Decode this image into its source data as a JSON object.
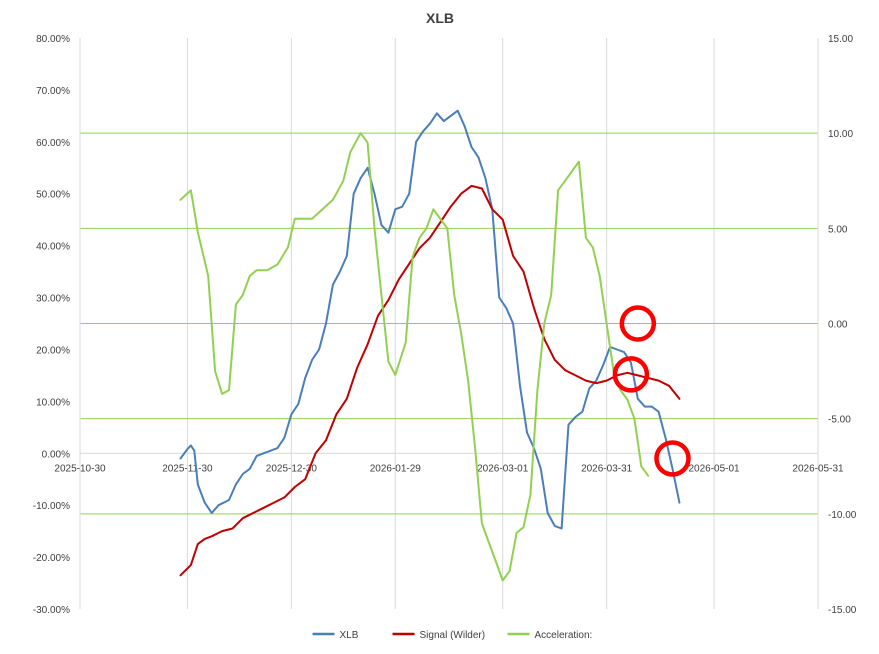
{
  "chart_data": {
    "type": "line",
    "title": "XLB",
    "x_ticks": [
      "2025-10-30",
      "2025-11-30",
      "2025-12-30",
      "2026-01-29",
      "2026-03-01",
      "2026-03-31",
      "2026-05-01",
      "2026-05-31"
    ],
    "x_range": [
      "2025-10-30",
      "2026-05-31"
    ],
    "y_left": {
      "range": [
        -30,
        80
      ],
      "ticks": [
        "-30.00%",
        "-20.00%",
        "-10.00%",
        "0.00%",
        "10.00%",
        "20.00%",
        "30.00%",
        "40.00%",
        "50.00%",
        "60.00%",
        "70.00%",
        "80.00%"
      ]
    },
    "y_right": {
      "range": [
        -15,
        15
      ],
      "ticks": [
        "-15.00",
        "-10.00",
        "-5.00",
        "0.00",
        "5.00",
        "10.00",
        "15.00"
      ]
    },
    "grid": {
      "vertical": true,
      "horizontal_right_axis": true
    },
    "legend_position": "bottom",
    "colors": {
      "xlb": "#4a7ebb",
      "signal": "#c00000",
      "acceleration": "#92d050",
      "grid_vertical": "#d9d9d9",
      "grid_horizontal": "#92d050",
      "annotation": "#ff0000"
    },
    "series": [
      {
        "name": "XLB",
        "axis": "left",
        "color": "#4a7ebb",
        "points": [
          [
            "2025-11-28",
            -1.0
          ],
          [
            "2025-11-30",
            0.8
          ],
          [
            "2025-12-01",
            1.5
          ],
          [
            "2025-12-02",
            0.5
          ],
          [
            "2025-12-03",
            -6.0
          ],
          [
            "2025-12-05",
            -9.5
          ],
          [
            "2025-12-07",
            -11.5
          ],
          [
            "2025-12-09",
            -10.0
          ],
          [
            "2025-12-12",
            -9.0
          ],
          [
            "2025-12-14",
            -6.0
          ],
          [
            "2025-12-16",
            -4.0
          ],
          [
            "2025-12-18",
            -3.0
          ],
          [
            "2025-12-20",
            -0.5
          ],
          [
            "2025-12-22",
            0.0
          ],
          [
            "2025-12-24",
            0.5
          ],
          [
            "2025-12-26",
            1.0
          ],
          [
            "2025-12-28",
            3.0
          ],
          [
            "2025-12-30",
            7.5
          ],
          [
            "2026-01-01",
            9.5
          ],
          [
            "2026-01-03",
            14.5
          ],
          [
            "2026-01-05",
            18.0
          ],
          [
            "2026-01-07",
            20.0
          ],
          [
            "2026-01-09",
            25.0
          ],
          [
            "2026-01-11",
            32.5
          ],
          [
            "2026-01-13",
            35.0
          ],
          [
            "2026-01-15",
            38.0
          ],
          [
            "2026-01-17",
            50.0
          ],
          [
            "2026-01-19",
            53.0
          ],
          [
            "2026-01-21",
            55.0
          ],
          [
            "2026-01-23",
            50.0
          ],
          [
            "2026-01-25",
            44.0
          ],
          [
            "2026-01-27",
            42.5
          ],
          [
            "2026-01-29",
            47.0
          ],
          [
            "2026-01-31",
            47.5
          ],
          [
            "2026-02-02",
            50.0
          ],
          [
            "2026-02-04",
            60.0
          ],
          [
            "2026-02-06",
            62.0
          ],
          [
            "2026-02-08",
            63.5
          ],
          [
            "2026-02-10",
            65.5
          ],
          [
            "2026-02-12",
            64.0
          ],
          [
            "2026-02-14",
            65.0
          ],
          [
            "2026-02-16",
            66.0
          ],
          [
            "2026-02-18",
            63.0
          ],
          [
            "2026-02-20",
            59.0
          ],
          [
            "2026-02-22",
            57.0
          ],
          [
            "2026-02-24",
            53.0
          ],
          [
            "2026-02-26",
            47.0
          ],
          [
            "2026-02-28",
            30.0
          ],
          [
            "2026-03-02",
            28.0
          ],
          [
            "2026-03-04",
            25.0
          ],
          [
            "2026-03-06",
            13.0
          ],
          [
            "2026-03-08",
            4.0
          ],
          [
            "2026-03-10",
            1.0
          ],
          [
            "2026-03-12",
            -3.0
          ],
          [
            "2026-03-14",
            -11.5
          ],
          [
            "2026-03-16",
            -14.0
          ],
          [
            "2026-03-18",
            -14.5
          ],
          [
            "2026-03-20",
            5.5
          ],
          [
            "2026-03-22",
            7.0
          ],
          [
            "2026-03-24",
            8.0
          ],
          [
            "2026-03-26",
            12.5
          ],
          [
            "2026-03-28",
            14.0
          ],
          [
            "2026-03-30",
            17.0
          ],
          [
            "2026-04-01",
            20.5
          ],
          [
            "2026-04-03",
            20.0
          ],
          [
            "2026-04-05",
            19.5
          ],
          [
            "2026-04-07",
            17.5
          ],
          [
            "2026-04-09",
            10.5
          ],
          [
            "2026-04-11",
            9.0
          ],
          [
            "2026-04-13",
            9.0
          ],
          [
            "2026-04-15",
            8.0
          ],
          [
            "2026-04-17",
            3.0
          ],
          [
            "2026-04-19",
            -3.0
          ],
          [
            "2026-04-21",
            -9.5
          ]
        ]
      },
      {
        "name": "Signal (Wilder)",
        "axis": "left",
        "color": "#c00000",
        "points": [
          [
            "2025-11-28",
            -23.5
          ],
          [
            "2025-12-01",
            -21.5
          ],
          [
            "2025-12-03",
            -17.5
          ],
          [
            "2025-12-05",
            -16.5
          ],
          [
            "2025-12-07",
            -16.0
          ],
          [
            "2025-12-10",
            -15.0
          ],
          [
            "2025-12-13",
            -14.5
          ],
          [
            "2025-12-16",
            -12.5
          ],
          [
            "2025-12-19",
            -11.5
          ],
          [
            "2025-12-22",
            -10.5
          ],
          [
            "2025-12-25",
            -9.5
          ],
          [
            "2025-12-28",
            -8.5
          ],
          [
            "2025-12-31",
            -6.5
          ],
          [
            "2026-01-03",
            -5.0
          ],
          [
            "2026-01-06",
            0.0
          ],
          [
            "2026-01-09",
            2.5
          ],
          [
            "2026-01-12",
            7.5
          ],
          [
            "2026-01-15",
            10.5
          ],
          [
            "2026-01-18",
            16.5
          ],
          [
            "2026-01-21",
            21.0
          ],
          [
            "2026-01-24",
            26.5
          ],
          [
            "2026-01-27",
            29.5
          ],
          [
            "2026-01-30",
            33.5
          ],
          [
            "2026-02-02",
            36.5
          ],
          [
            "2026-02-05",
            39.5
          ],
          [
            "2026-02-08",
            41.5
          ],
          [
            "2026-02-11",
            44.5
          ],
          [
            "2026-02-14",
            47.5
          ],
          [
            "2026-02-17",
            50.0
          ],
          [
            "2026-02-20",
            51.5
          ],
          [
            "2026-02-23",
            51.0
          ],
          [
            "2026-02-26",
            47.0
          ],
          [
            "2026-03-01",
            45.0
          ],
          [
            "2026-03-04",
            38.0
          ],
          [
            "2026-03-07",
            35.0
          ],
          [
            "2026-03-10",
            28.0
          ],
          [
            "2026-03-13",
            22.0
          ],
          [
            "2026-03-16",
            18.0
          ],
          [
            "2026-03-19",
            16.0
          ],
          [
            "2026-03-22",
            15.0
          ],
          [
            "2026-03-25",
            14.0
          ],
          [
            "2026-03-28",
            13.5
          ],
          [
            "2026-03-31",
            14.0
          ],
          [
            "2026-04-03",
            15.0
          ],
          [
            "2026-04-06",
            15.5
          ],
          [
            "2026-04-09",
            15.0
          ],
          [
            "2026-04-12",
            14.5
          ],
          [
            "2026-04-15",
            14.0
          ],
          [
            "2026-04-18",
            13.0
          ],
          [
            "2026-04-21",
            10.5
          ]
        ]
      },
      {
        "name": "Acceleration:",
        "axis": "right",
        "color": "#92d050",
        "points": [
          [
            "2025-11-28",
            6.5
          ],
          [
            "2025-12-01",
            7.0
          ],
          [
            "2025-12-03",
            4.8
          ],
          [
            "2025-12-06",
            2.5
          ],
          [
            "2025-12-08",
            -2.5
          ],
          [
            "2025-12-10",
            -3.7
          ],
          [
            "2025-12-12",
            -3.5
          ],
          [
            "2025-12-14",
            1.0
          ],
          [
            "2025-12-16",
            1.5
          ],
          [
            "2025-12-18",
            2.5
          ],
          [
            "2025-12-20",
            2.8
          ],
          [
            "2025-12-23",
            2.8
          ],
          [
            "2025-12-26",
            3.1
          ],
          [
            "2025-12-29",
            4.0
          ],
          [
            "2025-12-31",
            5.5
          ],
          [
            "2026-01-02",
            5.5
          ],
          [
            "2026-01-05",
            5.5
          ],
          [
            "2026-01-08",
            6.0
          ],
          [
            "2026-01-11",
            6.5
          ],
          [
            "2026-01-14",
            7.5
          ],
          [
            "2026-01-16",
            9.0
          ],
          [
            "2026-01-19",
            10.0
          ],
          [
            "2026-01-21",
            9.5
          ],
          [
            "2026-01-23",
            5.0
          ],
          [
            "2026-01-25",
            1.5
          ],
          [
            "2026-01-27",
            -2.0
          ],
          [
            "2026-01-29",
            -2.7
          ],
          [
            "2026-02-01",
            -1.0
          ],
          [
            "2026-02-03",
            3.5
          ],
          [
            "2026-02-05",
            4.5
          ],
          [
            "2026-02-07",
            5.0
          ],
          [
            "2026-02-09",
            6.0
          ],
          [
            "2026-02-11",
            5.5
          ],
          [
            "2026-02-13",
            5.0
          ],
          [
            "2026-02-15",
            1.5
          ],
          [
            "2026-02-17",
            -0.5
          ],
          [
            "2026-02-19",
            -3.0
          ],
          [
            "2026-02-21",
            -6.5
          ],
          [
            "2026-02-23",
            -10.5
          ],
          [
            "2026-02-25",
            -11.5
          ],
          [
            "2026-02-27",
            -12.5
          ],
          [
            "2026-03-01",
            -13.5
          ],
          [
            "2026-03-03",
            -13.0
          ],
          [
            "2026-03-05",
            -11.0
          ],
          [
            "2026-03-07",
            -10.7
          ],
          [
            "2026-03-09",
            -9.0
          ],
          [
            "2026-03-11",
            -3.5
          ],
          [
            "2026-03-13",
            0.0
          ],
          [
            "2026-03-15",
            1.5
          ],
          [
            "2026-03-17",
            7.0
          ],
          [
            "2026-03-19",
            7.5
          ],
          [
            "2026-03-21",
            8.0
          ],
          [
            "2026-03-23",
            8.5
          ],
          [
            "2026-03-25",
            4.5
          ],
          [
            "2026-03-27",
            4.0
          ],
          [
            "2026-03-29",
            2.5
          ],
          [
            "2026-03-31",
            0.0
          ],
          [
            "2026-04-02",
            -2.5
          ],
          [
            "2026-04-04",
            -3.5
          ],
          [
            "2026-04-06",
            -4.0
          ],
          [
            "2026-04-08",
            -5.0
          ],
          [
            "2026-04-10",
            -7.5
          ],
          [
            "2026-04-12",
            -8.0
          ]
        ]
      }
    ],
    "annotations": [
      {
        "x": "2026-04-09",
        "axis": "right",
        "y": 0.0,
        "shape": "circle"
      },
      {
        "x": "2026-04-07",
        "axis": "left",
        "y": 15.2,
        "shape": "circle"
      },
      {
        "x": "2026-04-19",
        "axis": "left",
        "y": -1.0,
        "shape": "circle"
      }
    ]
  }
}
